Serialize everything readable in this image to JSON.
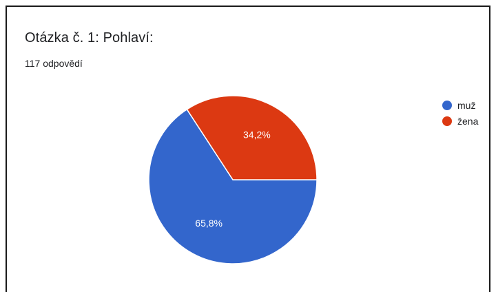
{
  "header": {
    "title": "Otázka č. 1: Pohlaví:",
    "subtitle": "117 odpovědí"
  },
  "chart_data": {
    "type": "pie",
    "title": "Otázka č. 1: Pohlaví:",
    "subtitle": "117 odpovědí",
    "categories": [
      "muž",
      "žena"
    ],
    "values": [
      65.8,
      34.2
    ],
    "labels": [
      "65,8%",
      "34,2%"
    ],
    "colors": [
      "#3366cc",
      "#dc3912"
    ],
    "legend_position": "right"
  }
}
